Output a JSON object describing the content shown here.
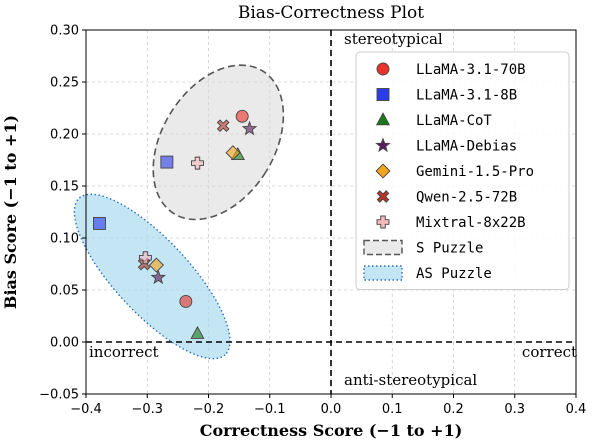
{
  "chart_data": {
    "type": "scatter",
    "title": "Bias-Correctness Plot",
    "xlabel": "Correctness Score (−1 to +1)",
    "ylabel": "Bias Score (−1 to +1)",
    "xlim": [
      -0.4,
      0.4
    ],
    "ylim": [
      -0.05,
      0.3
    ],
    "xticks": [
      "−0.4",
      "−0.3",
      "−0.2",
      "−0.1",
      "0.0",
      "0.1",
      "0.2",
      "0.3",
      "0.4"
    ],
    "yticks": [
      "−0.05",
      "0.00",
      "0.05",
      "0.10",
      "0.15",
      "0.20",
      "0.25",
      "0.30"
    ],
    "grid": true,
    "legend_position": "upper-right",
    "annotations": {
      "top": "stereotypical",
      "bottom": "anti-stereotypical",
      "left": "incorrect",
      "right": "correct"
    },
    "series": [
      {
        "name": "LLaMA-3.1-70B",
        "marker": "circle",
        "color": "#e8342d",
        "points": {
          "S": [
            -0.145,
            0.217
          ],
          "AS": [
            -0.237,
            0.039
          ]
        }
      },
      {
        "name": "LLaMA-3.1-8B",
        "marker": "square",
        "color": "#2b3de8",
        "points": {
          "S": [
            -0.268,
            0.173
          ],
          "AS": [
            -0.378,
            0.114
          ]
        }
      },
      {
        "name": "LLaMA-CoT",
        "marker": "triangle",
        "color": "#1a7a1a",
        "points": {
          "S": [
            -0.152,
            0.18
          ],
          "AS": [
            -0.218,
            0.008
          ]
        }
      },
      {
        "name": "LLaMA-Debias",
        "marker": "star",
        "color": "#5c1b5c",
        "points": {
          "S": [
            -0.133,
            0.205
          ],
          "AS": [
            -0.282,
            0.062
          ]
        }
      },
      {
        "name": "Gemini-1.5-Pro",
        "marker": "diamond",
        "color": "#f2a51e",
        "points": {
          "S": [
            -0.16,
            0.182
          ],
          "AS": [
            -0.285,
            0.074
          ]
        }
      },
      {
        "name": "Qwen-2.5-72B",
        "marker": "x",
        "color": "#b5352b",
        "points": {
          "S": [
            -0.176,
            0.208
          ],
          "AS": [
            -0.305,
            0.075
          ]
        }
      },
      {
        "name": "Mixtral-8x22B",
        "marker": "plus",
        "color": "#f7b8be",
        "points": {
          "S": [
            -0.218,
            0.172
          ],
          "AS": [
            -0.303,
            0.081
          ]
        }
      }
    ],
    "regions": [
      {
        "name": "S Puzzle",
        "center": [
          -0.184,
          0.192
        ],
        "fill": "#d9d9d9",
        "edge": "#555555",
        "style": "dashed"
      },
      {
        "name": "AS Puzzle",
        "center": [
          -0.292,
          0.063
        ],
        "fill": "#a9daf0",
        "edge": "#2a70b8",
        "style": "dotted"
      }
    ]
  }
}
